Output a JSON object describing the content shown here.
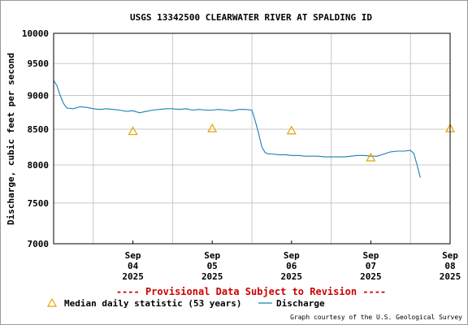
{
  "chart_data": {
    "type": "line",
    "title": "USGS 13342500 CLEARWATER RIVER AT SPALDING ID",
    "ylabel": "Discharge, cubic feet per second",
    "xlabel": "",
    "ylim": [
      7000,
      10000
    ],
    "y_scale": "log",
    "grid": true,
    "y_ticks": [
      {
        "value": 7000,
        "label": "7000"
      },
      {
        "value": 7500,
        "label": "7500"
      },
      {
        "value": 8000,
        "label": "8000"
      },
      {
        "value": 8500,
        "label": "8500"
      },
      {
        "value": 9000,
        "label": "9000"
      },
      {
        "value": 9500,
        "label": "9500"
      },
      {
        "value": 10000,
        "label": "10000"
      }
    ],
    "xlim": [
      "2025-09-03T12:00",
      "2025-09-08T12:00"
    ],
    "x_ticks": [
      {
        "value": "2025-09-04T12:00",
        "lines": [
          "Sep",
          "04",
          "2025"
        ]
      },
      {
        "value": "2025-09-05T12:00",
        "lines": [
          "Sep",
          "05",
          "2025"
        ]
      },
      {
        "value": "2025-09-06T12:00",
        "lines": [
          "Sep",
          "06",
          "2025"
        ]
      },
      {
        "value": "2025-09-07T12:00",
        "lines": [
          "Sep",
          "07",
          "2025"
        ]
      },
      {
        "value": "2025-09-08T12:00",
        "lines": [
          "Sep",
          "08",
          "2025"
        ]
      }
    ],
    "x_gridlines": [
      "2025-09-04T00:00",
      "2025-09-05T00:00",
      "2025-09-06T00:00",
      "2025-09-07T00:00",
      "2025-09-08T00:00"
    ],
    "series": [
      {
        "name": "Discharge",
        "color": "#1a7fb5",
        "x": [
          "2025-09-03T12:00",
          "2025-09-03T13:00",
          "2025-09-03T14:00",
          "2025-09-03T15:00",
          "2025-09-03T16:00",
          "2025-09-03T18:00",
          "2025-09-03T20:00",
          "2025-09-03T22:00",
          "2025-09-04T00:00",
          "2025-09-04T02:00",
          "2025-09-04T04:00",
          "2025-09-04T06:00",
          "2025-09-04T08:00",
          "2025-09-04T10:00",
          "2025-09-04T12:00",
          "2025-09-04T14:00",
          "2025-09-04T16:00",
          "2025-09-04T18:00",
          "2025-09-04T20:00",
          "2025-09-04T22:00",
          "2025-09-05T00:00",
          "2025-09-05T02:00",
          "2025-09-05T04:00",
          "2025-09-05T06:00",
          "2025-09-05T08:00",
          "2025-09-05T10:00",
          "2025-09-05T12:00",
          "2025-09-05T14:00",
          "2025-09-05T16:00",
          "2025-09-05T18:00",
          "2025-09-05T20:00",
          "2025-09-05T22:00",
          "2025-09-06T00:00",
          "2025-09-06T01:00",
          "2025-09-06T02:00",
          "2025-09-06T03:00",
          "2025-09-06T04:00",
          "2025-09-06T05:00",
          "2025-09-06T06:00",
          "2025-09-06T08:00",
          "2025-09-06T10:00",
          "2025-09-06T12:00",
          "2025-09-06T14:00",
          "2025-09-06T16:00",
          "2025-09-06T18:00",
          "2025-09-06T20:00",
          "2025-09-06T22:00",
          "2025-09-07T00:00",
          "2025-09-07T02:00",
          "2025-09-07T04:00",
          "2025-09-07T06:00",
          "2025-09-07T08:00",
          "2025-09-07T10:00",
          "2025-09-07T12:00",
          "2025-09-07T14:00",
          "2025-09-07T16:00",
          "2025-09-07T18:00",
          "2025-09-07T20:00",
          "2025-09-07T22:00",
          "2025-09-08T00:00",
          "2025-09-08T01:00",
          "2025-09-08T02:00",
          "2025-09-08T03:00"
        ],
        "y": [
          9230,
          9150,
          9000,
          8880,
          8810,
          8800,
          8830,
          8820,
          8800,
          8790,
          8800,
          8790,
          8780,
          8760,
          8770,
          8740,
          8760,
          8780,
          8790,
          8800,
          8800,
          8790,
          8800,
          8780,
          8790,
          8780,
          8780,
          8790,
          8780,
          8770,
          8790,
          8790,
          8780,
          8620,
          8450,
          8250,
          8170,
          8150,
          8150,
          8140,
          8140,
          8130,
          8130,
          8120,
          8120,
          8120,
          8110,
          8110,
          8110,
          8110,
          8120,
          8130,
          8130,
          8120,
          8120,
          8150,
          8180,
          8190,
          8190,
          8200,
          8160,
          8000,
          7830
        ]
      },
      {
        "name": "Median daily statistic (53 years)",
        "type": "scatter",
        "marker": "triangle",
        "color": "#e8a100",
        "x": [
          "2025-09-04T12:00",
          "2025-09-05T12:00",
          "2025-09-06T12:00",
          "2025-09-07T12:00",
          "2025-09-08T12:00"
        ],
        "y": [
          8470,
          8510,
          8480,
          8100,
          8510
        ]
      }
    ],
    "provisional_note": "---- Provisional Data Subject to Revision ----",
    "credit": "Graph courtesy of the U.S. Geological Survey",
    "legend": {
      "placement": "bottom-left",
      "median_label": "Median daily statistic (53 years)",
      "discharge_label": "Discharge"
    },
    "colors": {
      "discharge": "#1a7fb5",
      "median": "#e8a100",
      "provisional": "#cc0000",
      "grid": "#c8c8c8",
      "frame": "#000000"
    }
  }
}
